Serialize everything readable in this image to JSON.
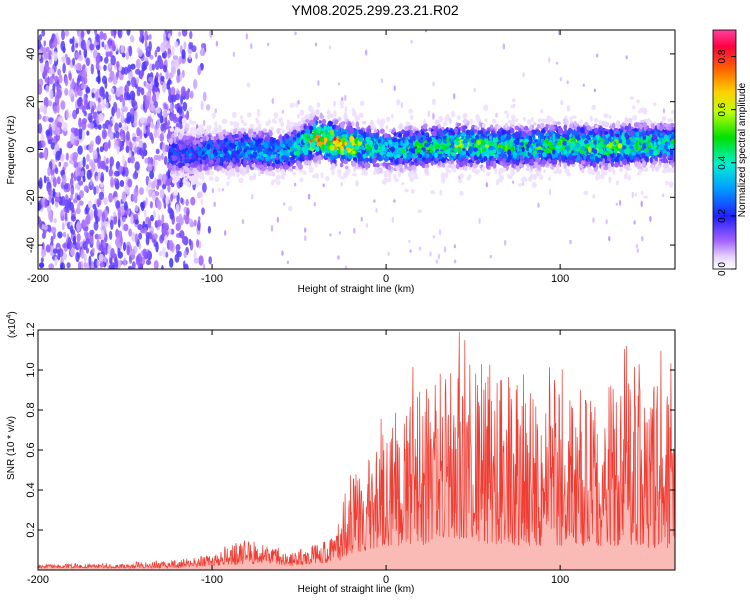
{
  "title": "YM08.2025.299.23.21.R02",
  "chart_data": [
    {
      "type": "heatmap",
      "xlabel": "Height of straight line (km)",
      "ylabel": "Frequency (Hz)",
      "xlim": [
        -200,
        166
      ],
      "ylim": [
        -50,
        50
      ],
      "xticks": [
        -200,
        -100,
        0,
        100
      ],
      "yticks": [
        -40,
        -20,
        0,
        20,
        40
      ],
      "colorbar": {
        "label": "Normalized spectral amplitude",
        "range": [
          0,
          0.9
        ],
        "ticks": [
          "0.0",
          "0.2",
          "0.4",
          "0.6",
          "0.8"
        ]
      },
      "ridge": {
        "description_points_x": [
          -120,
          -100,
          -80,
          -60,
          -50,
          -40,
          -30,
          -20,
          -10,
          0,
          20,
          40,
          60,
          80,
          100,
          120,
          140,
          160
        ],
        "center_freq": [
          -2,
          -1,
          0,
          -1,
          1,
          5,
          3,
          2,
          1,
          0,
          1,
          2,
          1,
          1,
          2,
          1,
          2,
          2
        ],
        "peak_amplitude": [
          0.25,
          0.3,
          0.35,
          0.35,
          0.45,
          0.7,
          0.75,
          0.65,
          0.45,
          0.4,
          0.45,
          0.55,
          0.5,
          0.45,
          0.5,
          0.55,
          0.5,
          0.45
        ]
      },
      "noise_region_x": [
        -200,
        -110
      ]
    },
    {
      "type": "line",
      "xlabel": "Height of straight line (km)",
      "ylabel": "SNR (10 * v/v)",
      "yscale_label": "(x10",
      "yscale_exp": "4",
      "xlim": [
        -200,
        166
      ],
      "ylim": [
        0,
        1.2
      ],
      "xticks": [
        -200,
        -100,
        0,
        100
      ],
      "yticks": [
        "0.2",
        "0.4",
        "0.6",
        "0.8",
        "1.0",
        "1.2"
      ],
      "color": "#f03c32",
      "envelope": {
        "x": [
          -200,
          -150,
          -120,
          -100,
          -80,
          -65,
          -55,
          -45,
          -30,
          -25,
          -20,
          -10,
          0,
          10,
          20,
          30,
          40,
          60,
          80,
          100,
          120,
          140,
          166
        ],
        "base": [
          0.01,
          0.01,
          0.01,
          0.02,
          0.03,
          0.03,
          0.02,
          0.03,
          0.04,
          0.05,
          0.08,
          0.1,
          0.12,
          0.12,
          0.12,
          0.15,
          0.14,
          0.13,
          0.12,
          0.12,
          0.12,
          0.12,
          0.1
        ],
        "top": [
          0.03,
          0.03,
          0.05,
          0.08,
          0.16,
          0.12,
          0.08,
          0.12,
          0.16,
          0.35,
          0.48,
          0.6,
          0.7,
          0.8,
          0.9,
          1.0,
          1.05,
          1.0,
          0.95,
          0.95,
          0.9,
          0.95,
          0.9
        ]
      }
    }
  ]
}
